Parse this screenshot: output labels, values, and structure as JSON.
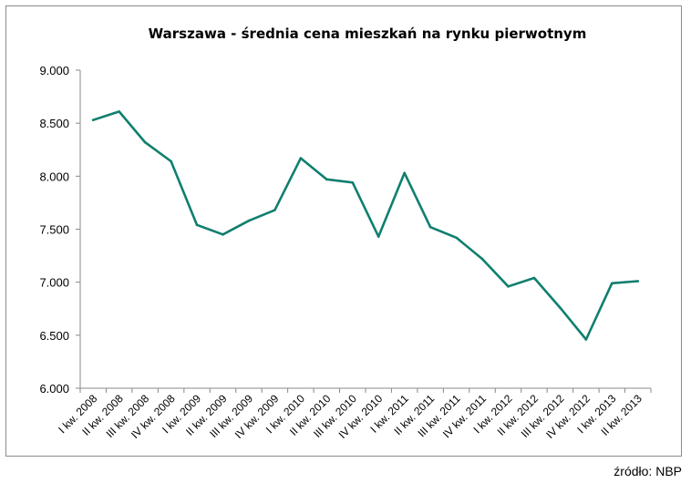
{
  "source_note": "źródło: NBP",
  "chart_data": {
    "type": "line",
    "title": "Warszawa - średnia cena mieszkań na rynku pierwotnym",
    "xlabel": "",
    "ylabel": "",
    "ylim": [
      6000,
      9000
    ],
    "yticks": [
      {
        "value": 6000,
        "label": "6.000"
      },
      {
        "value": 6500,
        "label": "6.500"
      },
      {
        "value": 7000,
        "label": "7.000"
      },
      {
        "value": 7500,
        "label": "7.500"
      },
      {
        "value": 8000,
        "label": "8.000"
      },
      {
        "value": 8500,
        "label": "8.500"
      },
      {
        "value": 9000,
        "label": "9.000"
      }
    ],
    "grid": false,
    "legend": "none",
    "line_color": "#0f7f6e",
    "categories": [
      "I kw. 2008",
      "II kw. 2008",
      "III kw. 2008",
      "IV kw. 2008",
      "I kw. 2009",
      "II kw. 2009",
      "III kw. 2009",
      "IV kw. 2009",
      "I kw. 2010",
      "II kw. 2010",
      "III kw. 2010",
      "IV kw. 2010",
      "I kw. 2011",
      "II kw. 2011",
      "III kw. 2011",
      "IV kw. 2011",
      "I kw. 2012",
      "II kw. 2012",
      "III kw. 2012",
      "IV kw. 2012",
      "I kw. 2013",
      "II kw. 2013"
    ],
    "series": [
      {
        "values": [
          8530,
          8610,
          8320,
          8140,
          7540,
          7450,
          7580,
          7680,
          8170,
          7970,
          7940,
          7430,
          8030,
          7520,
          7420,
          7220,
          6960,
          7040,
          6760,
          6460,
          6990,
          7010
        ]
      }
    ]
  }
}
